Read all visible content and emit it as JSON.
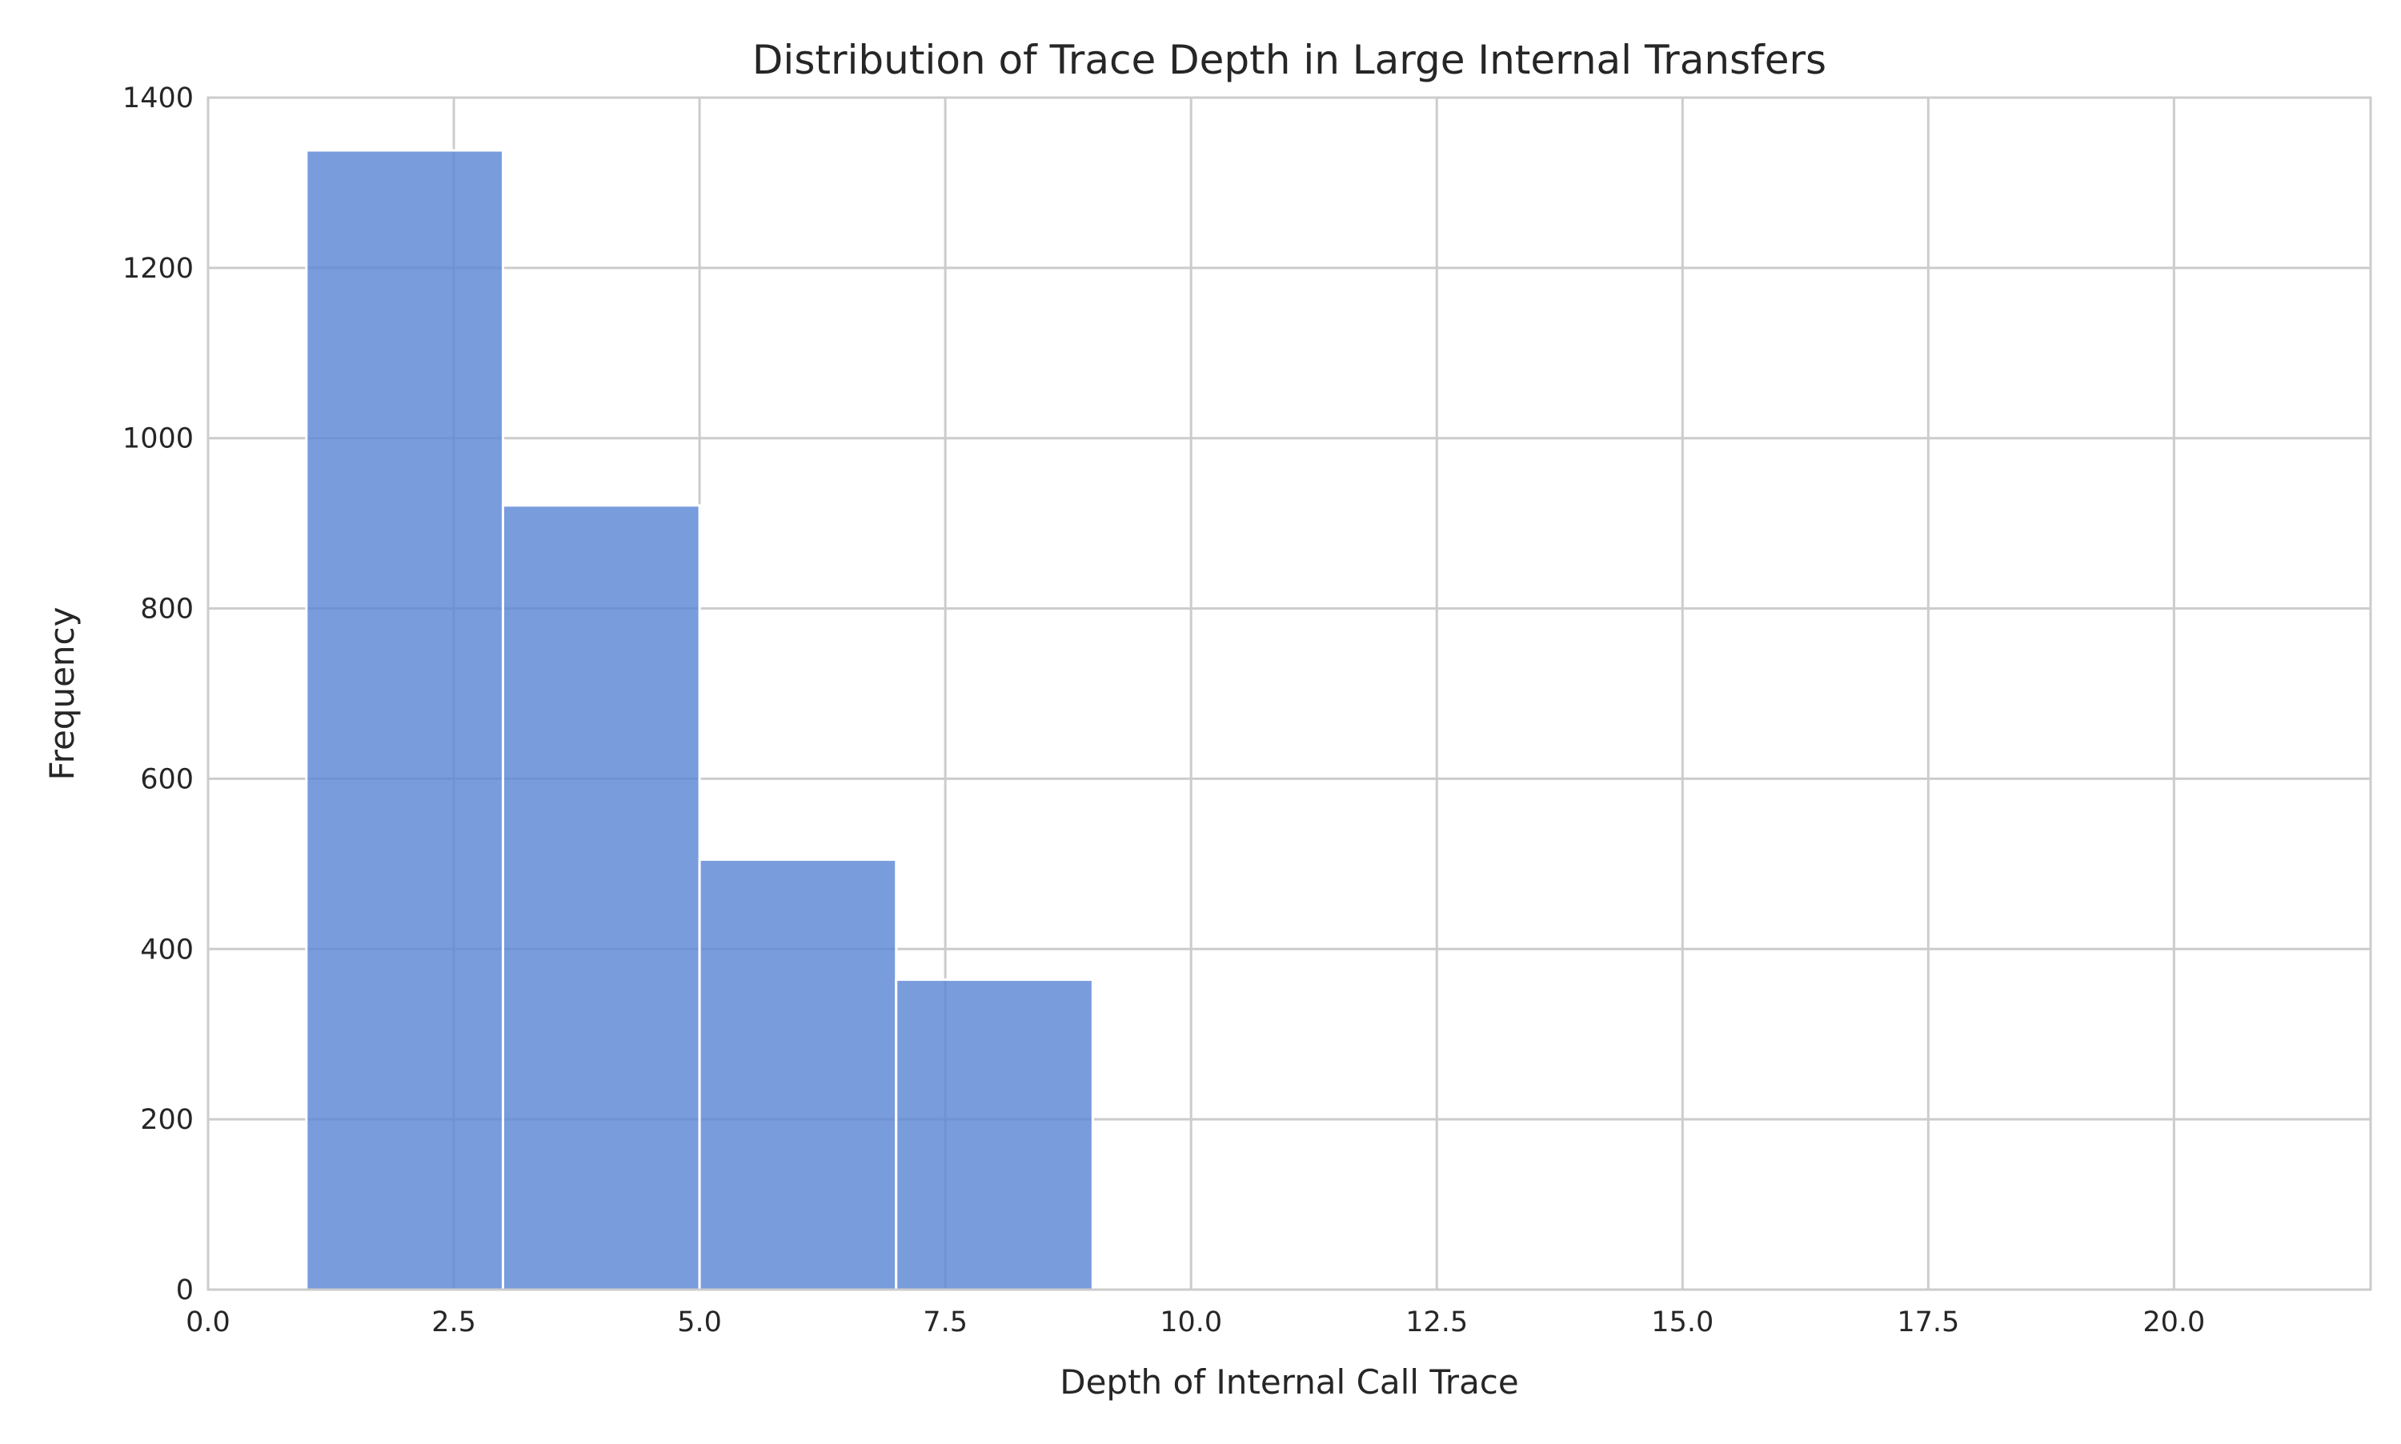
{
  "chart_data": {
    "type": "bar",
    "subtype": "histogram",
    "title": "Distribution of Trace Depth in Large Internal Transfers",
    "xlabel": "Depth of Internal Call Trace",
    "ylabel": "Frequency",
    "xlim": [
      0,
      22
    ],
    "ylim": [
      0,
      1400
    ],
    "xticks": [
      0,
      2.5,
      5,
      7.5,
      10,
      12.5,
      15,
      17.5,
      20
    ],
    "xtick_labels": [
      "0.0",
      "2.5",
      "5.0",
      "7.5",
      "10.0",
      "12.5",
      "15.0",
      "17.5",
      "20.0"
    ],
    "yticks": [
      0,
      200,
      400,
      600,
      800,
      1000,
      1200,
      1400
    ],
    "ytick_labels": [
      "0",
      "200",
      "400",
      "600",
      "800",
      "1000",
      "1200",
      "1400"
    ],
    "bins": [
      {
        "x0": 1,
        "x1": 3,
        "value": 1338
      },
      {
        "x0": 3,
        "x1": 5,
        "value": 921
      },
      {
        "x0": 5,
        "x1": 7,
        "value": 505
      },
      {
        "x0": 7,
        "x1": 9,
        "value": 364
      }
    ],
    "grid": true,
    "bar_color": "#5b86d5",
    "legend": "none"
  }
}
